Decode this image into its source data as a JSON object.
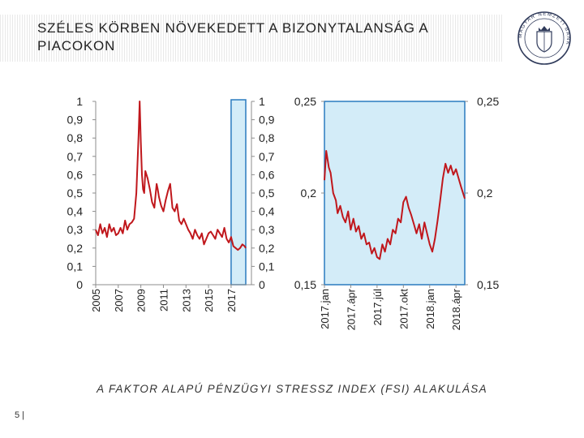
{
  "slide": {
    "title": "SZÉLES KÖRBEN NÖVEKEDETT A BIZONYTALANSÁG A PIACOKON",
    "caption": "A FAKTOR ALAPÚ PÉNZÜGYI STRESSZ INDEX (FSI) ALAKULÁSA",
    "page_number": "5 |",
    "logo": {
      "icon": "central-bank-seal-icon",
      "text": "MAGYAR NEMZETI BANK"
    }
  },
  "colors": {
    "series": "#c0171c",
    "highlight_fill": "#d3ecf8",
    "highlight_border": "#2a7bbf",
    "axis": "#8c8c8c"
  },
  "chart_data": [
    {
      "type": "line",
      "title": "",
      "xlabel": "",
      "ylabel": "",
      "ylim": [
        0,
        1
      ],
      "y_ticks": [
        "0",
        "0,1",
        "0,2",
        "0,3",
        "0,4",
        "0,5",
        "0,6",
        "0,7",
        "0,8",
        "0,9",
        "1"
      ],
      "x_ticks": [
        "2005",
        "2007",
        "2009",
        "2011",
        "2013",
        "2015",
        "2017"
      ],
      "xlim": [
        2005.0,
        2018.3
      ],
      "highlight_range": [
        2017.0,
        2018.3
      ],
      "grid": false,
      "series": [
        {
          "name": "",
          "x": [
            2005.0,
            2005.2,
            2005.4,
            2005.6,
            2005.8,
            2006.0,
            2006.2,
            2006.4,
            2006.6,
            2006.8,
            2007.0,
            2007.2,
            2007.4,
            2007.6,
            2007.8,
            2008.0,
            2008.2,
            2008.4,
            2008.6,
            2008.8,
            2008.9,
            2009.0,
            2009.1,
            2009.2,
            2009.3,
            2009.4,
            2009.6,
            2009.8,
            2010.0,
            2010.2,
            2010.4,
            2010.5,
            2010.6,
            2010.8,
            2011.0,
            2011.2,
            2011.4,
            2011.6,
            2011.8,
            2012.0,
            2012.2,
            2012.4,
            2012.6,
            2012.8,
            2013.0,
            2013.2,
            2013.4,
            2013.6,
            2013.8,
            2014.0,
            2014.2,
            2014.4,
            2014.6,
            2014.8,
            2015.0,
            2015.2,
            2015.4,
            2015.6,
            2015.8,
            2016.0,
            2016.2,
            2016.4,
            2016.6,
            2016.8,
            2017.0,
            2017.2,
            2017.4,
            2017.6,
            2017.8,
            2018.0,
            2018.2,
            2018.3
          ],
          "y": [
            0.3,
            0.27,
            0.33,
            0.28,
            0.31,
            0.26,
            0.33,
            0.29,
            0.31,
            0.27,
            0.28,
            0.31,
            0.28,
            0.35,
            0.3,
            0.33,
            0.34,
            0.36,
            0.5,
            0.82,
            1.0,
            0.78,
            0.6,
            0.52,
            0.5,
            0.62,
            0.58,
            0.52,
            0.45,
            0.42,
            0.55,
            0.52,
            0.48,
            0.43,
            0.4,
            0.46,
            0.51,
            0.55,
            0.42,
            0.4,
            0.44,
            0.35,
            0.33,
            0.36,
            0.33,
            0.3,
            0.28,
            0.25,
            0.3,
            0.27,
            0.25,
            0.28,
            0.22,
            0.25,
            0.28,
            0.29,
            0.27,
            0.25,
            0.3,
            0.28,
            0.26,
            0.31,
            0.25,
            0.23,
            0.26,
            0.21,
            0.2,
            0.19,
            0.2,
            0.22,
            0.21,
            0.2
          ]
        }
      ]
    },
    {
      "type": "line",
      "title": "",
      "xlabel": "",
      "ylabel": "",
      "ylim": [
        0.15,
        0.25
      ],
      "y_ticks": [
        "0,15",
        "0,2",
        "0,25"
      ],
      "x_ticks": [
        "2017.jan",
        "2017.ápr",
        "2017.júl",
        "2017.okt",
        "2018.jan",
        "2018.ápr"
      ],
      "xlim": [
        0,
        16
      ],
      "grid": false,
      "series": [
        {
          "name": "",
          "x": [
            0.0,
            0.2,
            0.5,
            0.7,
            1.0,
            1.3,
            1.5,
            1.8,
            2.1,
            2.4,
            2.7,
            3.0,
            3.3,
            3.6,
            3.9,
            4.2,
            4.5,
            4.8,
            5.1,
            5.4,
            5.7,
            6.0,
            6.3,
            6.6,
            6.9,
            7.2,
            7.5,
            7.8,
            8.1,
            8.4,
            8.7,
            9.0,
            9.3,
            9.6,
            9.9,
            10.2,
            10.5,
            10.8,
            11.1,
            11.4,
            11.7,
            12.0,
            12.3,
            12.6,
            12.9,
            13.2,
            13.5,
            13.8,
            14.1,
            14.4,
            14.7,
            15.0,
            15.3,
            15.6,
            16.0
          ],
          "y": [
            0.207,
            0.223,
            0.214,
            0.211,
            0.2,
            0.196,
            0.189,
            0.193,
            0.187,
            0.184,
            0.19,
            0.18,
            0.186,
            0.179,
            0.182,
            0.175,
            0.178,
            0.172,
            0.173,
            0.167,
            0.17,
            0.165,
            0.164,
            0.172,
            0.168,
            0.175,
            0.172,
            0.18,
            0.178,
            0.186,
            0.184,
            0.195,
            0.198,
            0.192,
            0.188,
            0.183,
            0.178,
            0.183,
            0.175,
            0.184,
            0.178,
            0.172,
            0.168,
            0.175,
            0.185,
            0.196,
            0.208,
            0.216,
            0.211,
            0.215,
            0.21,
            0.213,
            0.208,
            0.203,
            0.197
          ]
        }
      ]
    }
  ]
}
